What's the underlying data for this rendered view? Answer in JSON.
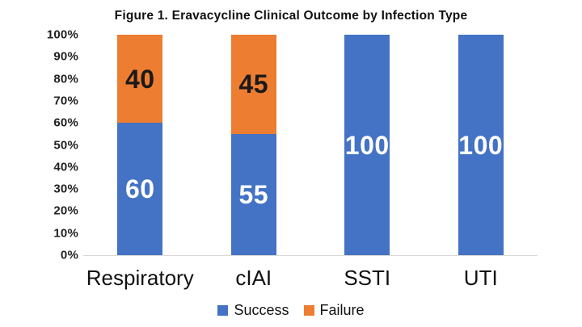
{
  "page": {
    "background": "#FFFFFF"
  },
  "chart_data": {
    "type": "bar",
    "stacked": true,
    "title": "Figure 1. Eravacycline Clinical Outcome by Infection Type",
    "categories": [
      "Respiratory",
      "cIAI",
      "SSTI",
      "UTI"
    ],
    "series": [
      {
        "name": "Success",
        "color": "#4472C4",
        "label_color": "#FFFFFF",
        "values": [
          60,
          55,
          100,
          100
        ]
      },
      {
        "name": "Failure",
        "color": "#ED7D31",
        "label_color": "#1A1A1A",
        "values": [
          40,
          45,
          0,
          0
        ]
      }
    ],
    "xlabel": "",
    "ylabel": "",
    "ylim": [
      0,
      100
    ],
    "y_tick_step": 10,
    "y_tick_labels": [
      "0%",
      "10%",
      "20%",
      "30%",
      "40%",
      "50%",
      "60%",
      "70%",
      "80%",
      "90%",
      "100%"
    ],
    "grid": false,
    "axis_line_color": "#D9D9D9",
    "legend_position": "bottom",
    "data_labels": true
  }
}
